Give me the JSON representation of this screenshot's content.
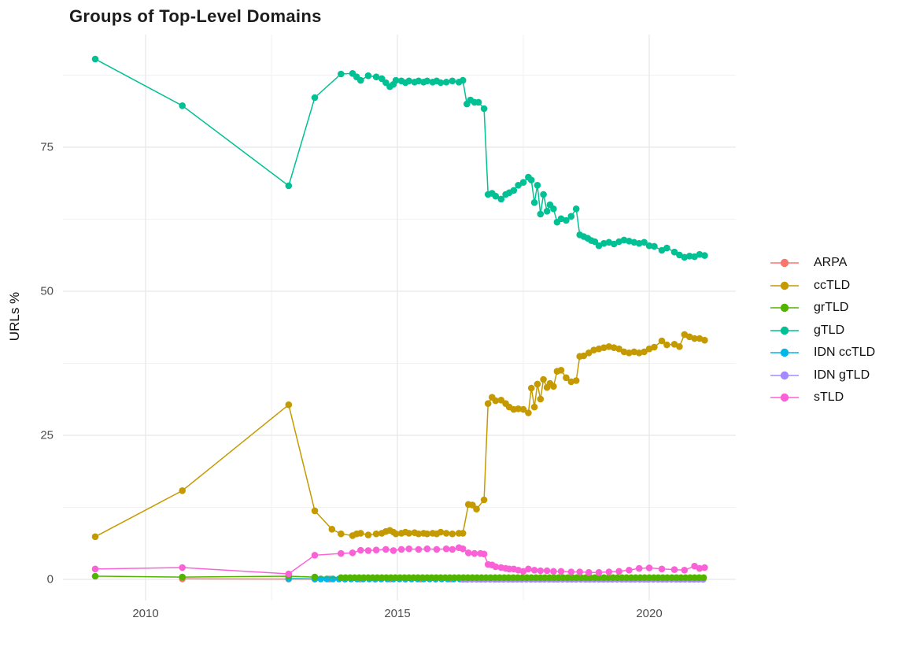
{
  "title": "Groups of Top-Level Domains",
  "chart_data": {
    "type": "line",
    "title": "Groups of Top-Level Domains",
    "xlabel": "",
    "ylabel": "URLs %",
    "grid": true,
    "legend_position": "right",
    "x_axis": {
      "ticks": [
        2010,
        2015,
        2020
      ],
      "minor_ticks": [
        2012.5,
        2017.5
      ],
      "range": [
        2008.4,
        2021.7
      ]
    },
    "y_axis": {
      "ticks": [
        0,
        25,
        50,
        75
      ],
      "minor_ticks": [
        12.5,
        37.5,
        62.5,
        87.5
      ],
      "range": [
        -3.7,
        94.5
      ]
    },
    "legend": [
      {
        "label": "ARPA",
        "color": "#F8766D"
      },
      {
        "label": "ccTLD",
        "color": "#C49A00"
      },
      {
        "label": "grTLD",
        "color": "#53B400"
      },
      {
        "label": "gTLD",
        "color": "#00C094"
      },
      {
        "label": "IDN ccTLD",
        "color": "#00B6EB"
      },
      {
        "label": "IDN gTLD",
        "color": "#A58AFF"
      },
      {
        "label": "sTLD",
        "color": "#FB61D7"
      }
    ],
    "series": [
      {
        "name": "ARPA",
        "color": "#F8766D",
        "points": [
          [
            2010.73,
            0.1
          ],
          [
            2012.84,
            0.05
          ]
        ],
        "fill": {
          "from": 2013.36,
          "to": 2021.1,
          "step": 0.3,
          "value": 0.05
        }
      },
      {
        "name": "IDN ccTLD",
        "color": "#00B6EB",
        "points": [
          [
            2012.84,
            0.14
          ]
        ],
        "fill": {
          "from": 2013.36,
          "to": 2021.1,
          "step": 0.12,
          "value": 0.08
        }
      },
      {
        "name": "IDN gTLD",
        "color": "#A58AFF",
        "points": [],
        "fill": {
          "from": 2016.3,
          "to": 2021.1,
          "step": 0.09,
          "value": 0.02
        }
      },
      {
        "name": "grTLD",
        "color": "#53B400",
        "points": [
          [
            2009,
            0.55
          ],
          [
            2010.73,
            0.4
          ],
          [
            2012.84,
            0.55
          ],
          [
            2013.36,
            0.4
          ]
        ],
        "fill": {
          "from": 2013.88,
          "to": 2021.1,
          "step": 0.09,
          "value": 0.3
        }
      },
      {
        "name": "ccTLD",
        "color": "#C49A00",
        "points": [
          [
            2009,
            7.4
          ],
          [
            2010.73,
            15.4
          ],
          [
            2012.84,
            30.3
          ],
          [
            2013.36,
            11.9
          ],
          [
            2013.7,
            8.7
          ],
          [
            2013.88,
            7.9
          ],
          [
            2014.11,
            7.6
          ],
          [
            2014.19,
            7.9
          ],
          [
            2014.27,
            8
          ],
          [
            2014.42,
            7.7
          ],
          [
            2014.58,
            7.9
          ],
          [
            2014.69,
            8
          ],
          [
            2014.77,
            8.3
          ],
          [
            2014.85,
            8.5
          ],
          [
            2014.92,
            8.2
          ],
          [
            2014.97,
            7.9
          ],
          [
            2015.08,
            8
          ],
          [
            2015.16,
            8.2
          ],
          [
            2015.23,
            8
          ],
          [
            2015.34,
            8.1
          ],
          [
            2015.42,
            7.9
          ],
          [
            2015.52,
            8
          ],
          [
            2015.59,
            7.9
          ],
          [
            2015.7,
            8
          ],
          [
            2015.78,
            7.9
          ],
          [
            2015.86,
            8.2
          ],
          [
            2015.97,
            8
          ],
          [
            2016.09,
            7.9
          ],
          [
            2016.22,
            8
          ],
          [
            2016.3,
            8
          ],
          [
            2016.41,
            13
          ],
          [
            2016.49,
            12.9
          ],
          [
            2016.57,
            12.2
          ],
          [
            2016.72,
            13.8
          ],
          [
            2016.8,
            30.5
          ],
          [
            2016.88,
            31.6
          ],
          [
            2016.95,
            31
          ],
          [
            2017.06,
            31.1
          ],
          [
            2017.15,
            30.5
          ],
          [
            2017.22,
            29.9
          ],
          [
            2017.31,
            29.5
          ],
          [
            2017.4,
            29.6
          ],
          [
            2017.5,
            29.5
          ],
          [
            2017.6,
            28.9
          ],
          [
            2017.66,
            33.2
          ],
          [
            2017.72,
            29.9
          ],
          [
            2017.78,
            33.9
          ],
          [
            2017.84,
            31.3
          ],
          [
            2017.9,
            34.7
          ],
          [
            2017.97,
            33.3
          ],
          [
            2018.03,
            34
          ],
          [
            2018.1,
            33.5
          ],
          [
            2018.17,
            36.1
          ],
          [
            2018.25,
            36.3
          ],
          [
            2018.35,
            35
          ],
          [
            2018.45,
            34.3
          ],
          [
            2018.55,
            34.5
          ],
          [
            2018.62,
            38.7
          ],
          [
            2018.7,
            38.8
          ],
          [
            2018.8,
            39.3
          ],
          [
            2018.9,
            39.8
          ],
          [
            2019,
            40
          ],
          [
            2019.1,
            40.2
          ],
          [
            2019.2,
            40.4
          ],
          [
            2019.3,
            40.2
          ],
          [
            2019.4,
            40
          ],
          [
            2019.5,
            39.5
          ],
          [
            2019.6,
            39.3
          ],
          [
            2019.7,
            39.5
          ],
          [
            2019.8,
            39.3
          ],
          [
            2019.9,
            39.5
          ],
          [
            2020,
            40
          ],
          [
            2020.1,
            40.3
          ],
          [
            2020.25,
            41.4
          ],
          [
            2020.35,
            40.7
          ],
          [
            2020.5,
            40.8
          ],
          [
            2020.6,
            40.4
          ],
          [
            2020.7,
            42.5
          ],
          [
            2020.8,
            42.1
          ],
          [
            2020.9,
            41.8
          ],
          [
            2021,
            41.8
          ],
          [
            2021.1,
            41.5
          ]
        ]
      },
      {
        "name": "gTLD",
        "color": "#00C094",
        "points": [
          [
            2009,
            90.3
          ],
          [
            2010.73,
            82.2
          ],
          [
            2012.84,
            68.3
          ],
          [
            2013.36,
            83.6
          ],
          [
            2013.88,
            87.7
          ],
          [
            2014.11,
            87.8
          ],
          [
            2014.19,
            87.2
          ],
          [
            2014.27,
            86.6
          ],
          [
            2014.42,
            87.4
          ],
          [
            2014.58,
            87.2
          ],
          [
            2014.69,
            86.9
          ],
          [
            2014.77,
            86.2
          ],
          [
            2014.85,
            85.5
          ],
          [
            2014.92,
            85.9
          ],
          [
            2014.97,
            86.6
          ],
          [
            2015.08,
            86.5
          ],
          [
            2015.16,
            86.2
          ],
          [
            2015.23,
            86.5
          ],
          [
            2015.34,
            86.3
          ],
          [
            2015.42,
            86.5
          ],
          [
            2015.52,
            86.3
          ],
          [
            2015.59,
            86.5
          ],
          [
            2015.7,
            86.3
          ],
          [
            2015.78,
            86.5
          ],
          [
            2015.86,
            86.2
          ],
          [
            2015.97,
            86.3
          ],
          [
            2016.09,
            86.5
          ],
          [
            2016.22,
            86.3
          ],
          [
            2016.3,
            86.6
          ],
          [
            2016.38,
            82.5
          ],
          [
            2016.45,
            83.2
          ],
          [
            2016.53,
            82.8
          ],
          [
            2016.61,
            82.8
          ],
          [
            2016.72,
            81.7
          ],
          [
            2016.8,
            66.8
          ],
          [
            2016.88,
            67
          ],
          [
            2016.95,
            66.5
          ],
          [
            2017.06,
            66
          ],
          [
            2017.15,
            66.8
          ],
          [
            2017.22,
            67.1
          ],
          [
            2017.31,
            67.5
          ],
          [
            2017.4,
            68.4
          ],
          [
            2017.5,
            68.9
          ],
          [
            2017.6,
            69.8
          ],
          [
            2017.66,
            69.3
          ],
          [
            2017.72,
            65.4
          ],
          [
            2017.78,
            68.4
          ],
          [
            2017.84,
            63.4
          ],
          [
            2017.9,
            66.8
          ],
          [
            2017.97,
            63.9
          ],
          [
            2018.03,
            65
          ],
          [
            2018.1,
            64.3
          ],
          [
            2018.17,
            62
          ],
          [
            2018.25,
            62.6
          ],
          [
            2018.35,
            62.3
          ],
          [
            2018.45,
            63
          ],
          [
            2018.55,
            64.3
          ],
          [
            2018.62,
            59.8
          ],
          [
            2018.7,
            59.5
          ],
          [
            2018.78,
            59.2
          ],
          [
            2018.85,
            58.8
          ],
          [
            2018.92,
            58.6
          ],
          [
            2019,
            57.9
          ],
          [
            2019.1,
            58.3
          ],
          [
            2019.2,
            58.5
          ],
          [
            2019.3,
            58.2
          ],
          [
            2019.4,
            58.6
          ],
          [
            2019.5,
            58.9
          ],
          [
            2019.6,
            58.7
          ],
          [
            2019.7,
            58.5
          ],
          [
            2019.8,
            58.3
          ],
          [
            2019.9,
            58.5
          ],
          [
            2020,
            57.9
          ],
          [
            2020.1,
            57.8
          ],
          [
            2020.25,
            57.1
          ],
          [
            2020.35,
            57.5
          ],
          [
            2020.5,
            56.8
          ],
          [
            2020.6,
            56.3
          ],
          [
            2020.7,
            55.9
          ],
          [
            2020.8,
            56.1
          ],
          [
            2020.9,
            56
          ],
          [
            2021,
            56.4
          ],
          [
            2021.1,
            56.2
          ]
        ]
      },
      {
        "name": "sTLD",
        "color": "#FB61D7",
        "points": [
          [
            2009,
            1.8
          ],
          [
            2010.73,
            2.05
          ],
          [
            2012.84,
            0.96
          ],
          [
            2013.36,
            4.2
          ],
          [
            2013.88,
            4.5
          ],
          [
            2014.11,
            4.6
          ],
          [
            2014.27,
            5.05
          ],
          [
            2014.42,
            5
          ],
          [
            2014.58,
            5.1
          ],
          [
            2014.77,
            5.2
          ],
          [
            2014.92,
            5
          ],
          [
            2015.08,
            5.2
          ],
          [
            2015.23,
            5.3
          ],
          [
            2015.42,
            5.2
          ],
          [
            2015.59,
            5.3
          ],
          [
            2015.78,
            5.2
          ],
          [
            2015.97,
            5.3
          ],
          [
            2016.09,
            5.2
          ],
          [
            2016.22,
            5.5
          ],
          [
            2016.3,
            5.3
          ],
          [
            2016.41,
            4.6
          ],
          [
            2016.53,
            4.5
          ],
          [
            2016.65,
            4.5
          ],
          [
            2016.72,
            4.4
          ],
          [
            2016.8,
            2.6
          ],
          [
            2016.88,
            2.5
          ],
          [
            2016.95,
            2.2
          ],
          [
            2017.06,
            2.05
          ],
          [
            2017.15,
            1.9
          ],
          [
            2017.22,
            1.8
          ],
          [
            2017.31,
            1.8
          ],
          [
            2017.4,
            1.6
          ],
          [
            2017.5,
            1.4
          ],
          [
            2017.6,
            1.8
          ],
          [
            2017.72,
            1.6
          ],
          [
            2017.84,
            1.5
          ],
          [
            2017.97,
            1.5
          ],
          [
            2018.1,
            1.4
          ],
          [
            2018.25,
            1.4
          ],
          [
            2018.45,
            1.3
          ],
          [
            2018.62,
            1.3
          ],
          [
            2018.8,
            1.2
          ],
          [
            2019,
            1.2
          ],
          [
            2019.2,
            1.3
          ],
          [
            2019.4,
            1.4
          ],
          [
            2019.6,
            1.6
          ],
          [
            2019.8,
            1.9
          ],
          [
            2020,
            2
          ],
          [
            2020.25,
            1.8
          ],
          [
            2020.5,
            1.7
          ],
          [
            2020.7,
            1.6
          ],
          [
            2020.9,
            2.3
          ],
          [
            2021,
            1.9
          ],
          [
            2021.1,
            2.05
          ]
        ]
      }
    ],
    "style": {
      "grid_major_color": "#E8E8E8",
      "grid_minor_color": "#F1F1F1",
      "tick_text_color": "#4d4d4d",
      "point_radius": 4.3,
      "line_width": 1.5
    }
  }
}
